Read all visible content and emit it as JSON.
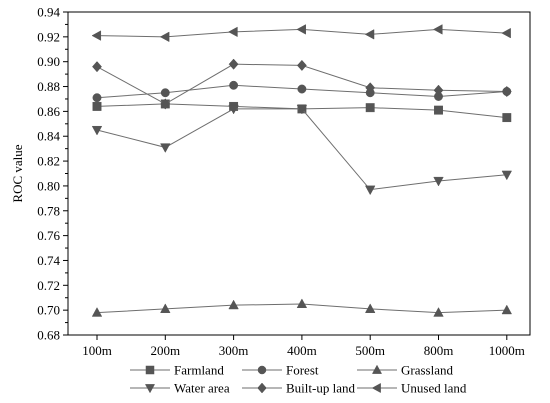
{
  "chart_data": {
    "type": "line",
    "ylabel": "ROC value",
    "xlabel": "",
    "categories": [
      "100m",
      "200m",
      "300m",
      "400m",
      "500m",
      "800m",
      "1000m"
    ],
    "ylim": [
      0.68,
      0.94
    ],
    "yticks": [
      0.68,
      0.7,
      0.72,
      0.74,
      0.76,
      0.78,
      0.8,
      0.82,
      0.84,
      0.86,
      0.88,
      0.9,
      0.92,
      0.94
    ],
    "tick_labels_y": [
      "0.68",
      "0.70",
      "0.72",
      "0.74",
      "0.76",
      "0.78",
      "0.80",
      "0.82",
      "0.84",
      "0.86",
      "0.88",
      "0.90",
      "0.92",
      "0.94"
    ],
    "grid": false,
    "legend_position": "bottom",
    "series": [
      {
        "name": "Farmland",
        "marker": "square",
        "values": [
          0.864,
          0.866,
          0.864,
          0.862,
          0.863,
          0.861,
          0.855
        ]
      },
      {
        "name": "Forest",
        "marker": "circle",
        "values": [
          0.871,
          0.875,
          0.881,
          0.878,
          0.875,
          0.872,
          0.876
        ]
      },
      {
        "name": "Grassland",
        "marker": "triangle-up",
        "values": [
          0.698,
          0.701,
          0.704,
          0.705,
          0.701,
          0.698,
          0.7
        ]
      },
      {
        "name": "Water area",
        "marker": "triangle-down",
        "values": [
          0.845,
          0.831,
          0.862,
          0.862,
          0.797,
          0.804,
          0.809
        ]
      },
      {
        "name": "Built-up land",
        "marker": "diamond",
        "values": [
          0.896,
          0.866,
          0.898,
          0.897,
          0.879,
          0.877,
          0.876
        ]
      },
      {
        "name": "Unused land",
        "marker": "triangle-left",
        "values": [
          0.921,
          0.92,
          0.924,
          0.926,
          0.922,
          0.926,
          0.923
        ]
      }
    ],
    "colors": {
      "line": "#6e6e6e",
      "marker": "#555555",
      "axis": "#000000"
    }
  }
}
